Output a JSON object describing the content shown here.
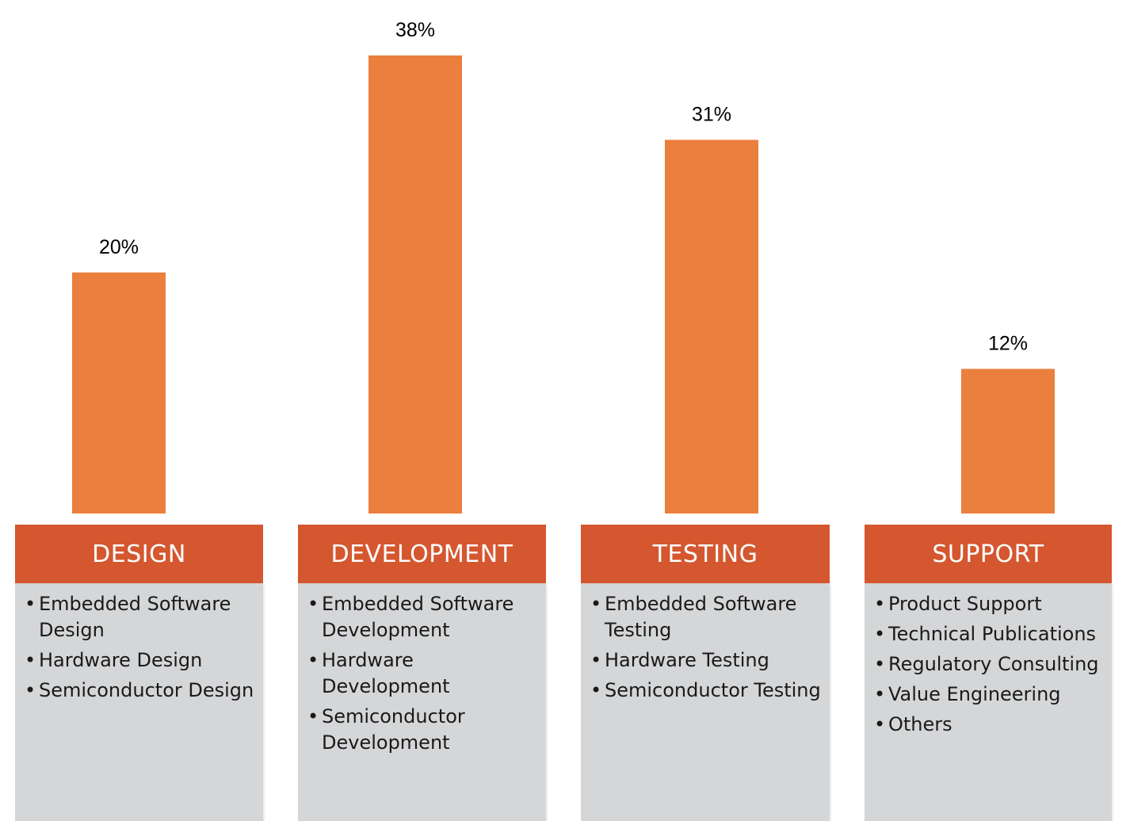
{
  "chart_data": {
    "type": "bar",
    "categories": [
      "DESIGN",
      "DEVELOPMENT",
      "TESTING",
      "SUPPORT"
    ],
    "values": [
      20,
      38,
      31,
      12
    ],
    "data_labels": [
      "20%",
      "38%",
      "31%",
      "12%"
    ],
    "title": "",
    "xlabel": "",
    "ylabel": "",
    "ylim": [
      0,
      38
    ],
    "grid": false,
    "bar_color": "#ea7f3e"
  },
  "panels": [
    {
      "title": "DESIGN",
      "items": [
        "Embedded Software Design",
        "Hardware Design",
        "Semiconductor Design"
      ]
    },
    {
      "title": "DEVELOPMENT",
      "items": [
        "Embedded Software Development",
        "Hardware Development",
        "Semiconductor Development"
      ]
    },
    {
      "title": "TESTING",
      "items": [
        "Embedded Software Testing",
        "Hardware Testing",
        "Semiconductor Testing"
      ]
    },
    {
      "title": "SUPPORT",
      "items": [
        "Product Support",
        "Technical Publications",
        "Regulatory Consulting",
        "Value Engineering",
        "Others"
      ]
    }
  ],
  "colors": {
    "bar": "#ea7f3e",
    "header": "#d5572f",
    "panel_body": "#d5d6d8"
  },
  "bullet_glyph": "•"
}
